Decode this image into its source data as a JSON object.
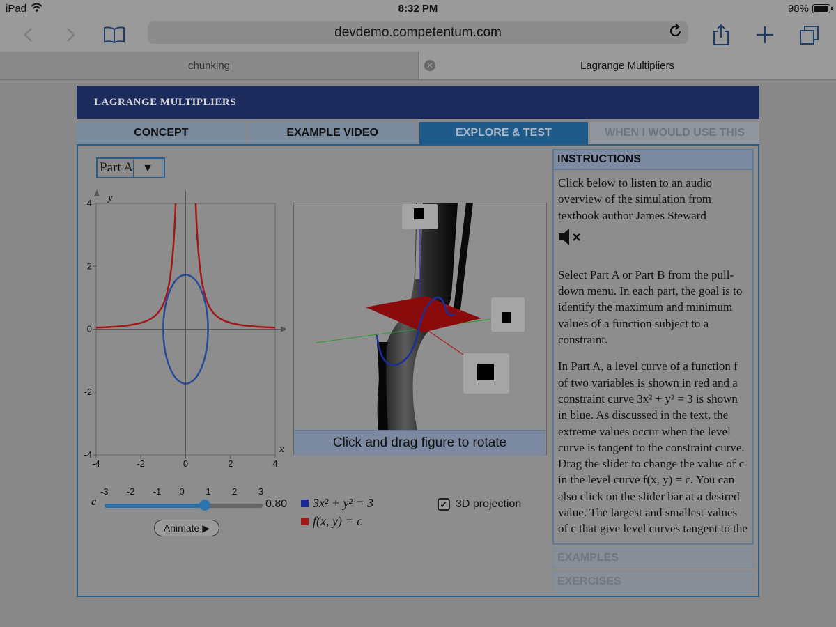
{
  "status": {
    "device": "iPad",
    "time": "8:32 PM",
    "battery": "98%",
    "battery_level": 0.98
  },
  "browser": {
    "url": "devdemo.competentum.com",
    "tabs": [
      {
        "label": "chunking"
      },
      {
        "label": "Lagrange Multipliers"
      }
    ]
  },
  "app": {
    "title": "LAGRANGE MULTIPLIERS",
    "nav": [
      {
        "label": "CONCEPT"
      },
      {
        "label": "EXAMPLE VIDEO"
      },
      {
        "label": "EXPLORE & TEST"
      },
      {
        "label": "WHEN I WOULD USE THIS"
      }
    ],
    "part_select": {
      "value": "Part A",
      "arrow": "▼"
    }
  },
  "chart_data": {
    "type": "line",
    "xlabel": "x",
    "ylabel": "y",
    "xlim": [
      -4,
      4
    ],
    "ylim": [
      -4,
      4
    ],
    "x_ticks": [
      "-4",
      "-2",
      "0",
      "2",
      "4"
    ],
    "y_ticks": [
      "4",
      "2",
      "0",
      "-2",
      "-4"
    ],
    "series": [
      {
        "color": "#a01818",
        "curve": "x^2 y = 0.8 (level curve f(x,y) = c)"
      },
      {
        "color": "#2a4a98",
        "curve": "3x^2 + y^2 = 3 (constraint ellipse)"
      }
    ]
  },
  "viewer3d": {
    "caption": "Click and drag figure to rotate"
  },
  "slider": {
    "symbol": "c",
    "min": -3,
    "max": 3,
    "value": 0.8,
    "value_label": "0.80",
    "ticks": [
      "-3",
      "-2",
      "-1",
      "0",
      "1",
      "2",
      "3"
    ]
  },
  "animate": {
    "label": "Animate",
    "icon": "play-icon"
  },
  "legend": {
    "constraint": {
      "text": "3x² + y² = 3",
      "color": "#1a2a9a"
    },
    "level": {
      "text": "f(x, y) = c",
      "color": "#a01818"
    }
  },
  "projection": {
    "label": "3D projection",
    "checked": true
  },
  "instructions": {
    "heading": "INSTRUCTIONS",
    "p1": "Click below to listen to an audio overview of the simulation from textbook author James Steward",
    "p2": "Select Part A or Part B from the pull-down menu. In each part, the goal is to identify the maximum and minimum values of a function subject to a constraint.",
    "p3": "In Part A, a level curve of a function f of two variables is shown in red and a constraint curve 3x² + y² = 3 is shown in blue. As discussed in the text, the extreme values occur when the level curve is tangent to the constraint curve. Drag the slider to change the value of c in the level curve f(x, y) = c. You can also click on the slider bar at a desired value. The largest and smallest values of c that give level curves tangent to the"
  },
  "accordion": [
    {
      "label": "EXAMPLES"
    },
    {
      "label": "EXERCISES"
    }
  ]
}
